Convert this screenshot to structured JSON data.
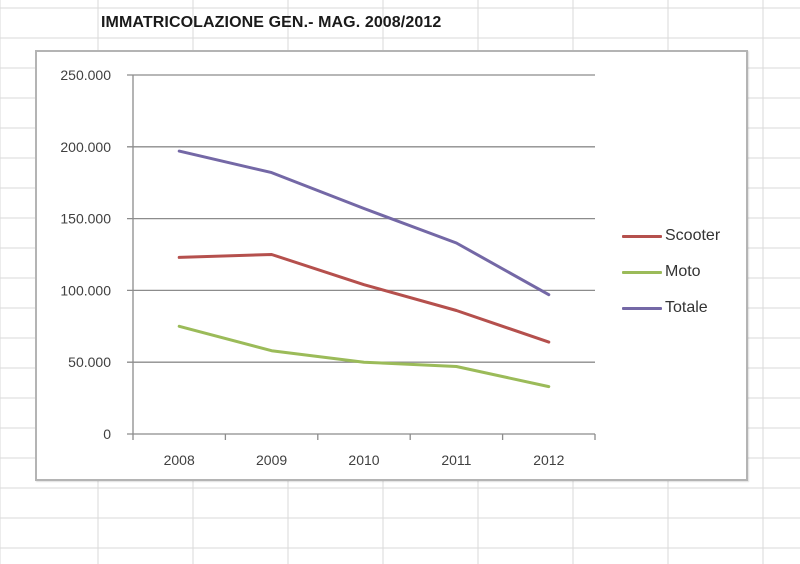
{
  "sheet": {
    "background": "#ffffff",
    "gridline_color": "#dadada",
    "column_edges": [
      0,
      98,
      193,
      288,
      383,
      478,
      573,
      668,
      763
    ],
    "row_edges": [
      8,
      38,
      68,
      98,
      128,
      158,
      188,
      218,
      248,
      278,
      308,
      338,
      368,
      398,
      428,
      458,
      488,
      518,
      548
    ]
  },
  "chart_title": "IMMATRICOLAZIONE GEN.- MAG. 2008/2012",
  "chart_data": {
    "type": "line",
    "title": "IMMATRICOLAZIONE GEN.- MAG. 2008/2012",
    "xlabel": "",
    "ylabel": "",
    "categories": [
      "2008",
      "2009",
      "2010",
      "2011",
      "2012"
    ],
    "series": [
      {
        "name": "Scooter",
        "color": "#b5504d",
        "values": [
          123000,
          125000,
          104000,
          86000,
          64000
        ]
      },
      {
        "name": "Moto",
        "color": "#9bbb59",
        "values": [
          75000,
          58000,
          50000,
          47000,
          33000
        ]
      },
      {
        "name": "Totale",
        "color": "#7468a6",
        "values": [
          197000,
          182000,
          157000,
          133000,
          97000
        ]
      }
    ],
    "ylim": [
      0,
      250000
    ],
    "yticks": [
      0,
      50000,
      100000,
      150000,
      200000,
      250000
    ],
    "ytick_labels": [
      "0",
      "50.000",
      "100.000",
      "150.000",
      "200.000",
      "250.000"
    ],
    "grid": true,
    "legend_position": "right"
  },
  "legend": {
    "items": [
      {
        "label": "Scooter",
        "color": "#b5504d"
      },
      {
        "label": "Moto",
        "color": "#9bbb59"
      },
      {
        "label": "Totale",
        "color": "#7468a6"
      }
    ]
  }
}
